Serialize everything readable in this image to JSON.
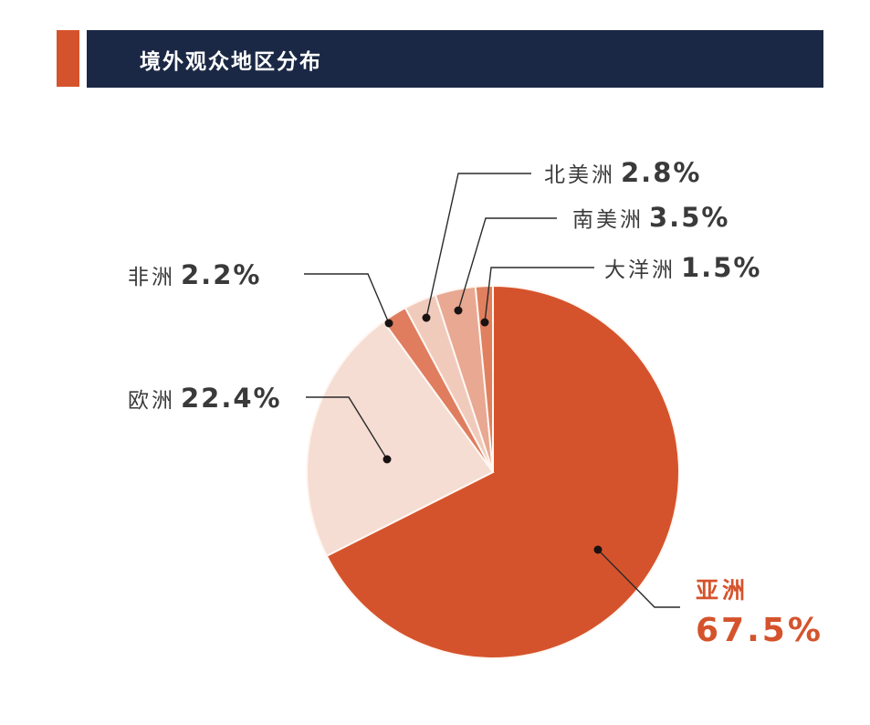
{
  "header": {
    "title": "境外观众地区分布",
    "accent_color": "#D5532C",
    "bar_color": "#1B2845"
  },
  "chart_data": {
    "type": "pie",
    "title": "境外观众地区分布",
    "start_angle": "12 o'clock",
    "direction": "clockwise starting with 亚洲",
    "slices": [
      {
        "label": "亚洲",
        "value": 67.5,
        "display": "67.5%",
        "color": "#D5532C"
      },
      {
        "label": "欧洲",
        "value": 22.4,
        "display": "22.4%",
        "color": "#F5DDD3"
      },
      {
        "label": "非洲",
        "value": 2.2,
        "display": "2.2%",
        "color": "#E07D5F"
      },
      {
        "label": "北美洲",
        "value": 2.8,
        "display": "2.8%",
        "color": "#F0CBBC"
      },
      {
        "label": "南美洲",
        "value": 3.5,
        "display": "3.5%",
        "color": "#E8A891"
      },
      {
        "label": "大洋洲",
        "value": 1.5,
        "display": "1.5%",
        "color": "#E0805F"
      }
    ],
    "legend": "none (direct labels with leader lines)"
  },
  "labels": {
    "asia": {
      "name": "亚洲",
      "pct": "67.5%"
    },
    "europe": {
      "name": "欧洲",
      "pct": "22.4%"
    },
    "africa": {
      "name": "非洲",
      "pct": "2.2%"
    },
    "north_america": {
      "name": "北美洲",
      "pct": "2.8%"
    },
    "south_america": {
      "name": "南美洲",
      "pct": "3.5%"
    },
    "oceania": {
      "name": "大洋洲",
      "pct": "1.5%"
    }
  }
}
